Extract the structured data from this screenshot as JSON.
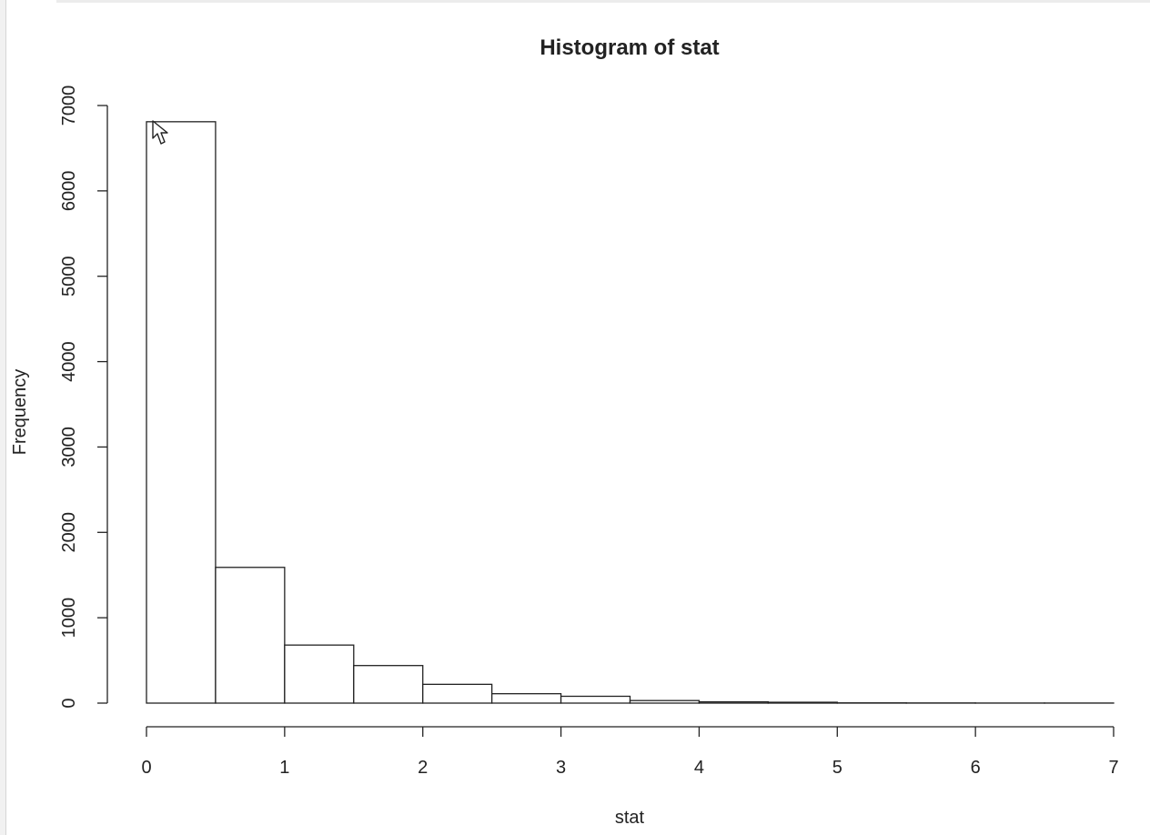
{
  "chart_data": {
    "type": "bar",
    "title": "Histogram of stat",
    "xlabel": "stat",
    "ylabel": "Frequency",
    "bins": [
      {
        "from": 0.0,
        "to": 0.5,
        "count": 6810
      },
      {
        "from": 0.5,
        "to": 1.0,
        "count": 1590
      },
      {
        "from": 1.0,
        "to": 1.5,
        "count": 680
      },
      {
        "from": 1.5,
        "to": 2.0,
        "count": 440
      },
      {
        "from": 2.0,
        "to": 2.5,
        "count": 220
      },
      {
        "from": 2.5,
        "to": 3.0,
        "count": 110
      },
      {
        "from": 3.0,
        "to": 3.5,
        "count": 80
      },
      {
        "from": 3.5,
        "to": 4.0,
        "count": 30
      },
      {
        "from": 4.0,
        "to": 4.5,
        "count": 15
      },
      {
        "from": 4.5,
        "to": 5.0,
        "count": 10
      },
      {
        "from": 5.0,
        "to": 5.5,
        "count": 3
      },
      {
        "from": 5.5,
        "to": 6.0,
        "count": 2
      },
      {
        "from": 6.0,
        "to": 6.5,
        "count": 1
      },
      {
        "from": 6.5,
        "to": 7.0,
        "count": 1
      }
    ],
    "xlim": [
      0,
      7
    ],
    "ylim": [
      0,
      7000
    ],
    "xticks": [
      0,
      1,
      2,
      3,
      4,
      5,
      6,
      7
    ],
    "yticks": [
      0,
      1000,
      2000,
      3000,
      4000,
      5000,
      6000,
      7000
    ],
    "xtick_labels": [
      "0",
      "1",
      "2",
      "3",
      "4",
      "5",
      "6",
      "7"
    ],
    "ytick_labels": [
      "0",
      "1000",
      "2000",
      "3000",
      "4000",
      "5000",
      "6000",
      "7000"
    ],
    "grid": false,
    "legend": "none",
    "bar_fill": "#ffffff",
    "bar_stroke": "#222222"
  },
  "icons": {
    "cursor": "mouse-pointer-arrow"
  }
}
